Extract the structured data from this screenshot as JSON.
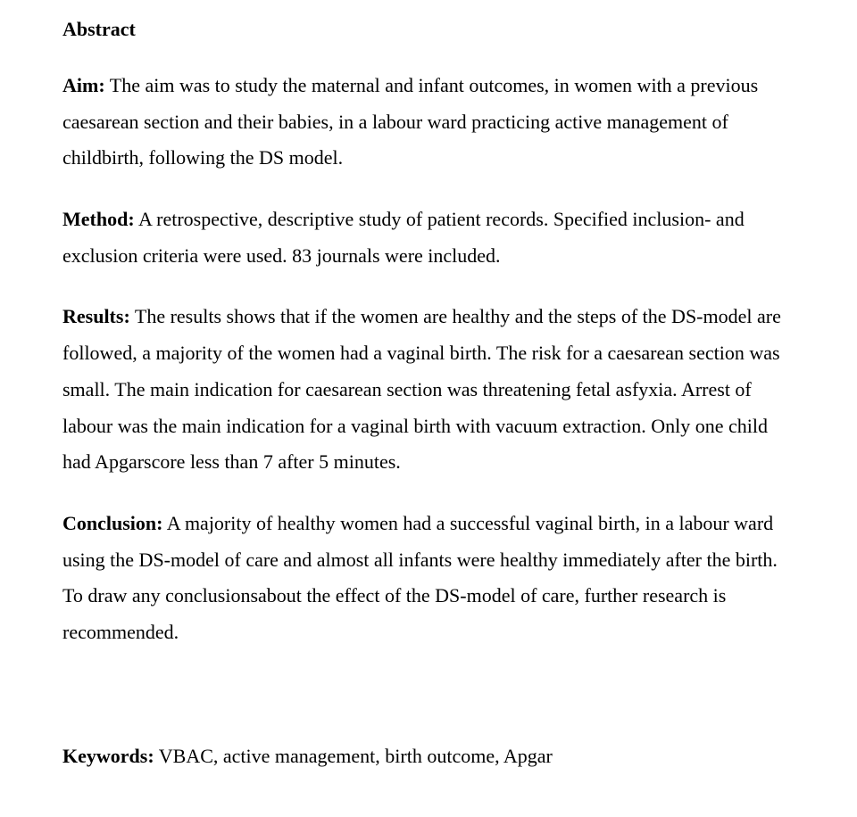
{
  "title": "Abstract",
  "aim": {
    "label": "Aim:",
    "text": " The aim was to study the maternal and infant outcomes, in women with a previous caesarean section and their babies, in a labour ward practicing active management of childbirth, following the DS model."
  },
  "method": {
    "label": "Method:",
    "text": " A retrospective, descriptive study of patient records. Specified inclusion- and exclusion criteria were used. 83 journals were included."
  },
  "results": {
    "label": "Results:",
    "text": " The results shows that if the women are healthy and the steps of the DS-model are followed, a majority of the women had a vaginal birth. The risk for a caesarean section was small. The main indication for caesarean section was threatening fetal asfyxia. Arrest of labour was the main indication for a vaginal birth with vacuum extraction. Only one child had Apgarscore less than 7 after 5 minutes."
  },
  "conclusion": {
    "label": "Conclusion:",
    "text": " A majority of healthy women had a successful vaginal birth, in a labour ward using the DS-model of care and almost all infants were healthy immediately after the birth. To draw any conclusionsabout the effect of the DS-model of care, further research is recommended."
  },
  "keywords": {
    "label": "Keywords:",
    "text": " VBAC, active management, birth outcome, Apgar"
  }
}
